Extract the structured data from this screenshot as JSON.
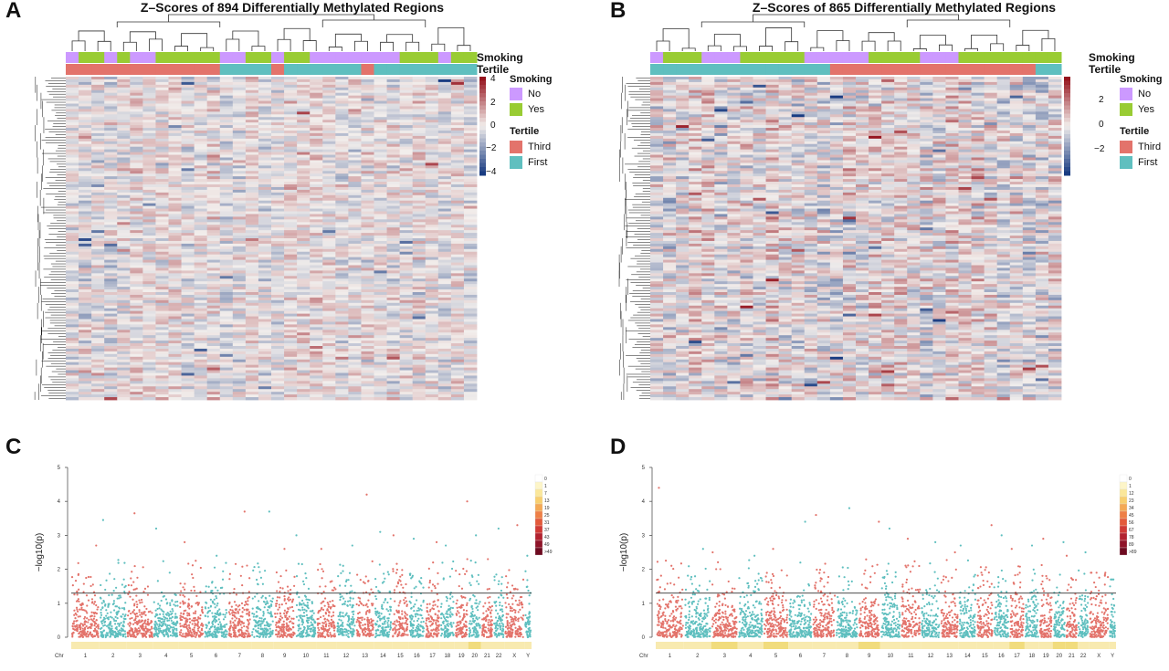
{
  "panels": {
    "A": {
      "letter": "A",
      "title": "Z–Scores of 894 Differentially Methylated Regions"
    },
    "B": {
      "letter": "B",
      "title": "Z–Scores of 865 Differentially Methylated Regions"
    },
    "C": {
      "letter": "C"
    },
    "D": {
      "letter": "D"
    }
  },
  "annotation_labels": {
    "smoking": "Smoking",
    "tertile": "Tertile"
  },
  "legend": {
    "smoking_title": "Smoking",
    "smoking_no": "No",
    "smoking_yes": "Yes",
    "tertile_title": "Tertile",
    "tertile_third": "Third",
    "tertile_first": "First",
    "colors": {
      "no": "#cc99ff",
      "yes": "#99cc33",
      "third": "#e3736b",
      "first": "#5fbfbf"
    }
  },
  "chart_data": [
    {
      "type": "heatmap",
      "panel": "A",
      "title": "Z–Scores of 894 Differentially Methylated Regions",
      "rows": 894,
      "columns": 32,
      "color_scale": {
        "min": -4,
        "max": 4,
        "ticks": [
          "4",
          "2",
          "0",
          "−2",
          "−4"
        ]
      },
      "annotations": {
        "Smoking": [
          "No",
          "Yes",
          "Yes",
          "No",
          "Yes",
          "No",
          "No",
          "Yes",
          "Yes",
          "Yes",
          "Yes",
          "Yes",
          "No",
          "No",
          "Yes",
          "Yes",
          "No",
          "Yes",
          "Yes",
          "No",
          "No",
          "No",
          "No",
          "No",
          "No",
          "No",
          "Yes",
          "Yes",
          "Yes",
          "No",
          "Yes",
          "Yes"
        ],
        "Tertile": [
          "Third",
          "Third",
          "Third",
          "Third",
          "Third",
          "Third",
          "Third",
          "Third",
          "Third",
          "Third",
          "Third",
          "Third",
          "First",
          "First",
          "First",
          "First",
          "Third",
          "First",
          "First",
          "First",
          "First",
          "First",
          "First",
          "Third",
          "First",
          "First",
          "First",
          "First",
          "First",
          "First",
          "First",
          "First"
        ]
      }
    },
    {
      "type": "heatmap",
      "panel": "B",
      "title": "Z–Scores of 865 Differentially Methylated Regions",
      "rows": 865,
      "columns": 32,
      "color_scale": {
        "min": -3,
        "max": 3,
        "ticks": [
          "2",
          "0",
          "−2"
        ]
      },
      "annotations": {
        "Smoking": [
          "No",
          "Yes",
          "Yes",
          "Yes",
          "No",
          "No",
          "No",
          "Yes",
          "Yes",
          "Yes",
          "Yes",
          "Yes",
          "No",
          "No",
          "No",
          "No",
          "No",
          "Yes",
          "Yes",
          "Yes",
          "Yes",
          "No",
          "No",
          "No",
          "Yes",
          "Yes",
          "Yes",
          "Yes",
          "Yes",
          "Yes",
          "Yes",
          "Yes"
        ],
        "Tertile": [
          "First",
          "First",
          "First",
          "First",
          "First",
          "First",
          "First",
          "First",
          "First",
          "First",
          "First",
          "First",
          "First",
          "First",
          "Third",
          "Third",
          "Third",
          "Third",
          "Third",
          "Third",
          "Third",
          "Third",
          "Third",
          "Third",
          "Third",
          "Third",
          "Third",
          "Third",
          "Third",
          "Third",
          "First",
          "First"
        ]
      }
    },
    {
      "type": "scatter",
      "panel": "C",
      "subtype": "manhattan",
      "ylabel": "−log10(p)",
      "ylim": [
        0,
        5
      ],
      "yticks": [
        "0",
        "1",
        "2",
        "3",
        "4",
        "5"
      ],
      "threshold": 1.3,
      "x_axis_label": "Chr",
      "chromosomes": [
        "1",
        "2",
        "3",
        "4",
        "5",
        "6",
        "7",
        "8",
        "9",
        "10",
        "11",
        "12",
        "13",
        "14",
        "15",
        "16",
        "17",
        "18",
        "19",
        "20",
        "21",
        "22",
        "X",
        "Y"
      ],
      "chr_max": [
        2.7,
        3.45,
        3.65,
        3.2,
        2.8,
        2.4,
        3.7,
        3.7,
        2.6,
        3.0,
        2.6,
        2.7,
        4.2,
        3.1,
        3.0,
        2.9,
        2.8,
        2.7,
        4.0,
        3.0,
        2.3,
        3.2,
        3.3,
        2.4
      ],
      "colors": [
        "#e3736b",
        "#5fbfbf"
      ],
      "density_legend": [
        "0",
        "1",
        "7",
        "13",
        "19",
        "25",
        "31",
        "37",
        "43",
        "49",
        ">49"
      ]
    },
    {
      "type": "scatter",
      "panel": "D",
      "subtype": "manhattan",
      "ylabel": "−log10(p)",
      "ylim": [
        0,
        5
      ],
      "yticks": [
        "0",
        "1",
        "2",
        "3",
        "4",
        "5"
      ],
      "threshold": 1.3,
      "x_axis_label": "Chr",
      "chromosomes": [
        "1",
        "2",
        "3",
        "4",
        "5",
        "6",
        "7",
        "8",
        "9",
        "10",
        "11",
        "12",
        "13",
        "14",
        "15",
        "16",
        "17",
        "18",
        "19",
        "20",
        "21",
        "22",
        "X",
        "Y"
      ],
      "chr_max": [
        4.4,
        2.6,
        2.5,
        2.4,
        2.6,
        3.4,
        3.6,
        3.8,
        3.4,
        3.2,
        2.9,
        2.8,
        2.5,
        2.7,
        3.3,
        3.0,
        2.6,
        2.7,
        2.9,
        2.8,
        2.4,
        2.5,
        1.9,
        1.7
      ],
      "colors": [
        "#e3736b",
        "#5fbfbf"
      ],
      "density_legend": [
        "0",
        "1",
        "12",
        "23",
        "34",
        "45",
        "56",
        "67",
        "78",
        "89",
        ">89"
      ]
    }
  ]
}
